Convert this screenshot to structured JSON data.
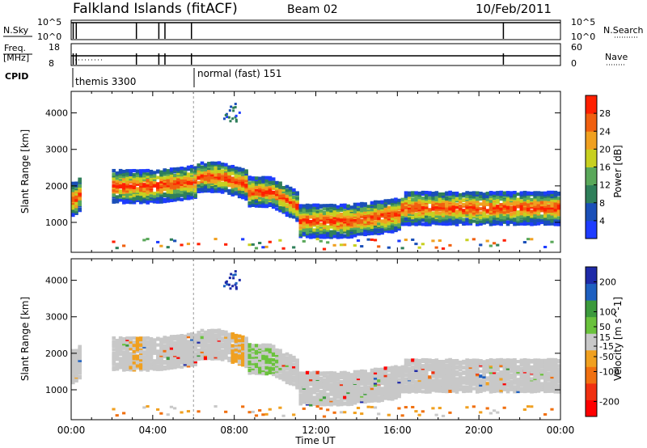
{
  "header": {
    "station": "Falkland Islands (fitACF)",
    "beam": "Beam 02",
    "date": "10/Feb/2011"
  },
  "strips": {
    "nsky": {
      "left_label": "N.Sky",
      "left_ticks": [
        "10^5",
        "10^0"
      ],
      "right_ticks": [
        "10^5",
        "10^0"
      ],
      "right_label": "N.Search"
    },
    "freq": {
      "left_label": "Freq.",
      "left_unit": "[MHz]",
      "left_ticks": [
        "18",
        "8"
      ],
      "right_ticks": [
        "60",
        "0"
      ],
      "right_label": "Nave"
    },
    "cpid": {
      "label": "CPID",
      "segments": [
        {
          "name": "themis 3300",
          "start_hour": 0
        },
        {
          "name": "normal (fast) 151",
          "start_hour": 6
        }
      ]
    }
  },
  "colors": {
    "power": [
      "#1e3cff",
      "#1a4fb8",
      "#2f7f5a",
      "#5aa85a",
      "#c8d020",
      "#f0a020",
      "#f06010",
      "#ff2000"
    ],
    "velocity": [
      "#1e2aa8",
      "#1e60c0",
      "#3c9a3c",
      "#6ac23c",
      "#c8c8c8",
      "#f0a020",
      "#f07010",
      "#f03010",
      "#ff0000"
    ]
  },
  "chart_data": [
    {
      "type": "heatmap",
      "title": "Power",
      "ylabel": "Slant Range [km]",
      "xlabel": "Time UT",
      "x_ticks": [
        "00:00",
        "04:00",
        "08:00",
        "12:00",
        "16:00",
        "20:00",
        "00:00"
      ],
      "x_range_hours": [
        0,
        24
      ],
      "y_ticks": [
        1000,
        2000,
        3000,
        4000
      ],
      "ylim": [
        180,
        4590
      ],
      "colorbar": {
        "label": "Power [dB]",
        "ticks": [
          4,
          8,
          12,
          16,
          20,
          24,
          28
        ],
        "range": [
          0,
          32
        ]
      },
      "echo_bands": [
        {
          "hours": [
            0,
            0.4
          ],
          "center_km": 1700,
          "width_km": 900
        },
        {
          "hours": [
            2,
            6
          ],
          "center_km": 2050,
          "width_km": 900
        },
        {
          "hours": [
            6,
            8.5
          ],
          "center_km": 2300,
          "width_km": 800
        },
        {
          "hours": [
            8.5,
            11
          ],
          "center_km": 1900,
          "width_km": 800
        },
        {
          "hours": [
            11,
            16
          ],
          "center_km": 1100,
          "width_km": 900
        },
        {
          "hours": [
            16,
            24
          ],
          "center_km": 1450,
          "width_km": 900
        }
      ]
    },
    {
      "type": "heatmap",
      "title": "Velocity",
      "ylabel": "Slant Range [km]",
      "xlabel": "Time UT",
      "x_ticks": [
        "00:00",
        "04:00",
        "08:00",
        "12:00",
        "16:00",
        "20:00",
        "00:00"
      ],
      "x_range_hours": [
        0,
        24
      ],
      "y_ticks": [
        1000,
        2000,
        3000,
        4000
      ],
      "ylim": [
        180,
        4590
      ],
      "colorbar": {
        "label": "Velocity [m s^-1]",
        "ticks": [
          200,
          100,
          50,
          15,
          -15,
          -50,
          -100,
          -200
        ],
        "range": [
          -250,
          250
        ]
      }
    }
  ]
}
